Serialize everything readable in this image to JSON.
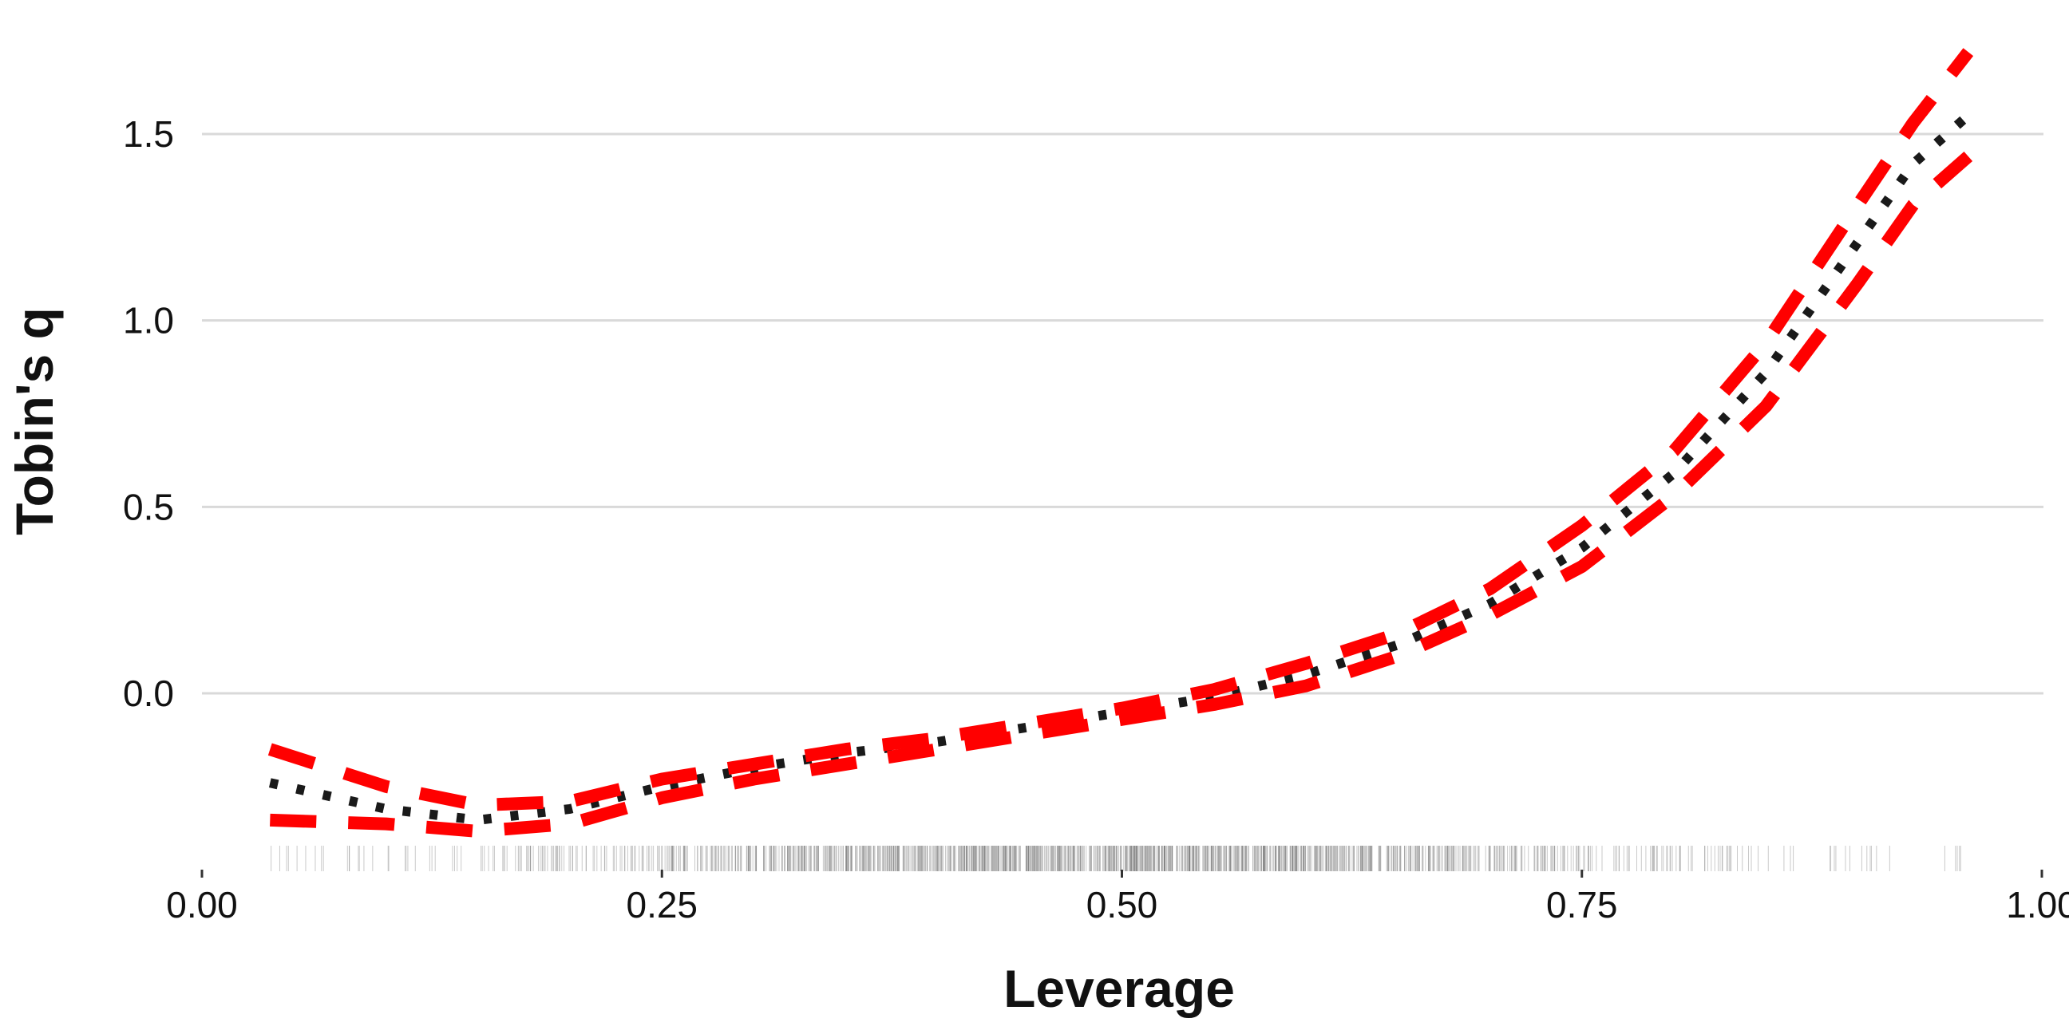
{
  "chart_data": {
    "type": "line",
    "title": "",
    "xlabel": "Leverage",
    "ylabel": "Tobin's q",
    "xlim": [
      0,
      1
    ],
    "ylim": [
      -0.45,
      1.8
    ],
    "x_ticks": [
      0,
      0.25,
      0.5,
      0.75,
      1
    ],
    "x_tick_labels": [
      "0.00",
      "0.25",
      "0.50",
      "0.75",
      "1.00"
    ],
    "y_ticks": [
      0,
      0.5,
      1,
      1.5
    ],
    "y_tick_labels": [
      "0.0",
      "0.5",
      "1.0",
      "1.5"
    ],
    "grid": {
      "horizontal": true,
      "vertical": false
    },
    "rug": true,
    "colors": {
      "estimate": "#1a1a1a",
      "bounds": "#ff0000",
      "grid": "#d9d9d9",
      "rug": "#666666"
    },
    "series": [
      {
        "role": "estimate",
        "style": "dotted",
        "x": [
          0.037,
          0.1,
          0.15,
          0.2,
          0.25,
          0.3,
          0.35,
          0.4,
          0.45,
          0.5,
          0.55,
          0.6,
          0.65,
          0.7,
          0.75,
          0.8,
          0.85,
          0.9,
          0.93,
          0.96
        ],
        "y": [
          -0.24,
          -0.31,
          -0.34,
          -0.31,
          -0.25,
          -0.2,
          -0.16,
          -0.13,
          -0.09,
          -0.05,
          -0.01,
          0.05,
          0.13,
          0.24,
          0.39,
          0.59,
          0.86,
          1.21,
          1.42,
          1.55
        ]
      },
      {
        "role": "upper bound",
        "style": "dashed",
        "x": [
          0.037,
          0.1,
          0.15,
          0.2,
          0.25,
          0.3,
          0.35,
          0.4,
          0.45,
          0.5,
          0.55,
          0.6,
          0.65,
          0.7,
          0.75,
          0.8,
          0.85,
          0.9,
          0.93,
          0.96
        ],
        "y": [
          -0.15,
          -0.25,
          -0.3,
          -0.29,
          -0.23,
          -0.19,
          -0.15,
          -0.12,
          -0.08,
          -0.04,
          0.01,
          0.08,
          0.16,
          0.28,
          0.45,
          0.65,
          0.94,
          1.31,
          1.53,
          1.72
        ]
      },
      {
        "role": "lower bound",
        "style": "dashed",
        "x": [
          0.037,
          0.1,
          0.15,
          0.2,
          0.25,
          0.3,
          0.35,
          0.4,
          0.45,
          0.5,
          0.55,
          0.6,
          0.65,
          0.7,
          0.75,
          0.8,
          0.85,
          0.9,
          0.93,
          0.96
        ],
        "y": [
          -0.34,
          -0.35,
          -0.37,
          -0.35,
          -0.28,
          -0.23,
          -0.19,
          -0.15,
          -0.11,
          -0.07,
          -0.03,
          0.02,
          0.1,
          0.21,
          0.34,
          0.53,
          0.77,
          1.1,
          1.31,
          1.44
        ]
      }
    ]
  }
}
